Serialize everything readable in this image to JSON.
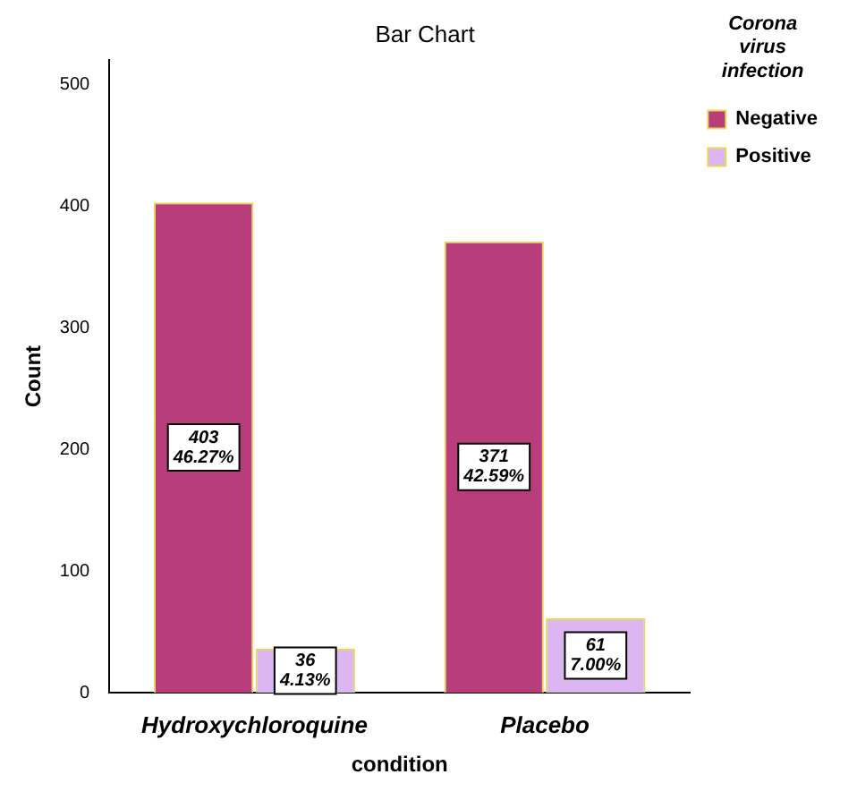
{
  "chart_data": {
    "type": "bar",
    "title": "Bar Chart",
    "xlabel": "condition",
    "ylabel": "Count",
    "legend_title": "Corona virus infection",
    "legend": "top right",
    "grid": false,
    "categories": [
      "Hydroxychloroquine",
      "Placebo"
    ],
    "series": [
      {
        "name": "Negative",
        "color": "#b83d7b",
        "values": [
          403,
          371
        ],
        "value_labels": [
          "403\n46.27%",
          "371\n42.59%"
        ]
      },
      {
        "name": "Positive",
        "color": "#dcb6f0",
        "values": [
          36,
          61
        ],
        "value_labels": [
          "36\n4.13%",
          "61\n7.00%"
        ]
      }
    ],
    "ylim": [
      0,
      520
    ],
    "yticks": [
      0,
      100,
      200,
      300,
      400,
      500
    ]
  }
}
